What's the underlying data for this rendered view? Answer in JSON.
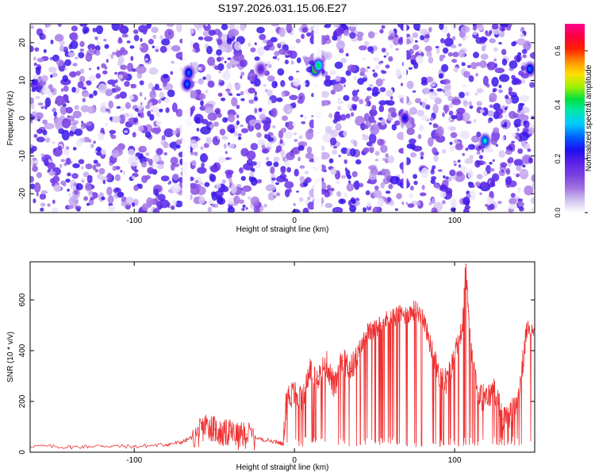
{
  "title": "S197.2026.031.15.06.E27",
  "chart_data": [
    {
      "type": "heatmap",
      "xlabel": "Height of straight line (km)",
      "ylabel": "Frequency (Hz)",
      "xlim": [
        -165,
        150
      ],
      "ylim": [
        -25,
        25
      ],
      "xticks": [
        -100,
        0,
        100
      ],
      "yticks": [
        -20,
        -10,
        0,
        10,
        20
      ],
      "colorbar": {
        "label": "Normalized spectral amplitude",
        "range": [
          0.0,
          0.7
        ],
        "ticks": [
          0.0,
          0.2,
          0.4,
          0.6
        ],
        "colors": [
          "#ffffff",
          "#cfc0ee",
          "#a070e0",
          "#7a3fe0",
          "#5a20e8",
          "#1b10f0",
          "#0060ff",
          "#00c8ff",
          "#00e6b4",
          "#00e040",
          "#a0f000",
          "#ffe000",
          "#ff9000",
          "#ff2000",
          "#ff0040",
          "#ff0090"
        ]
      },
      "gaps_km": [
        [
          -70,
          -65
        ],
        [
          12,
          17
        ],
        [
          68,
          70
        ]
      ],
      "hot_spots": [
        {
          "x": -66,
          "y": 12,
          "amp": 0.3
        },
        {
          "x": -67,
          "y": 9,
          "amp": 0.28
        },
        {
          "x": -21,
          "y": 13,
          "amp": 0.2
        },
        {
          "x": 13,
          "y": 13,
          "amp": 0.55
        },
        {
          "x": 15,
          "y": 14,
          "amp": 0.42
        },
        {
          "x": 69,
          "y": 0,
          "amp": 0.22
        },
        {
          "x": 119,
          "y": -6,
          "amp": 0.35
        },
        {
          "x": 147,
          "y": 13,
          "amp": 0.3
        }
      ]
    },
    {
      "type": "line",
      "xlabel": "Height of straight line (km)",
      "ylabel": "SNR (10 * v/v)",
      "xlim": [
        -165,
        150
      ],
      "ylim": [
        0,
        750
      ],
      "xticks": [
        -100,
        0,
        100
      ],
      "yticks": [
        0,
        200,
        400,
        600
      ],
      "color": "#ee3030",
      "series": [
        {
          "name": "SNR",
          "x": [
            -165,
            -140,
            -120,
            -100,
            -80,
            -70,
            -60,
            -55,
            -50,
            -45,
            -40,
            -35,
            -30,
            -20,
            -10,
            -7,
            -5,
            0,
            5,
            10,
            15,
            20,
            25,
            30,
            35,
            40,
            45,
            50,
            55,
            60,
            65,
            70,
            75,
            80,
            85,
            90,
            95,
            100,
            105,
            107,
            110,
            115,
            120,
            125,
            130,
            135,
            140,
            145,
            150
          ],
          "values": [
            25,
            20,
            25,
            22,
            30,
            40,
            70,
            110,
            90,
            70,
            80,
            60,
            70,
            50,
            40,
            30,
            220,
            230,
            200,
            330,
            300,
            350,
            250,
            360,
            330,
            380,
            470,
            480,
            510,
            530,
            540,
            540,
            560,
            540,
            420,
            300,
            280,
            370,
            500,
            740,
            420,
            220,
            210,
            250,
            130,
            150,
            220,
            480,
            500
          ]
        }
      ]
    }
  ]
}
